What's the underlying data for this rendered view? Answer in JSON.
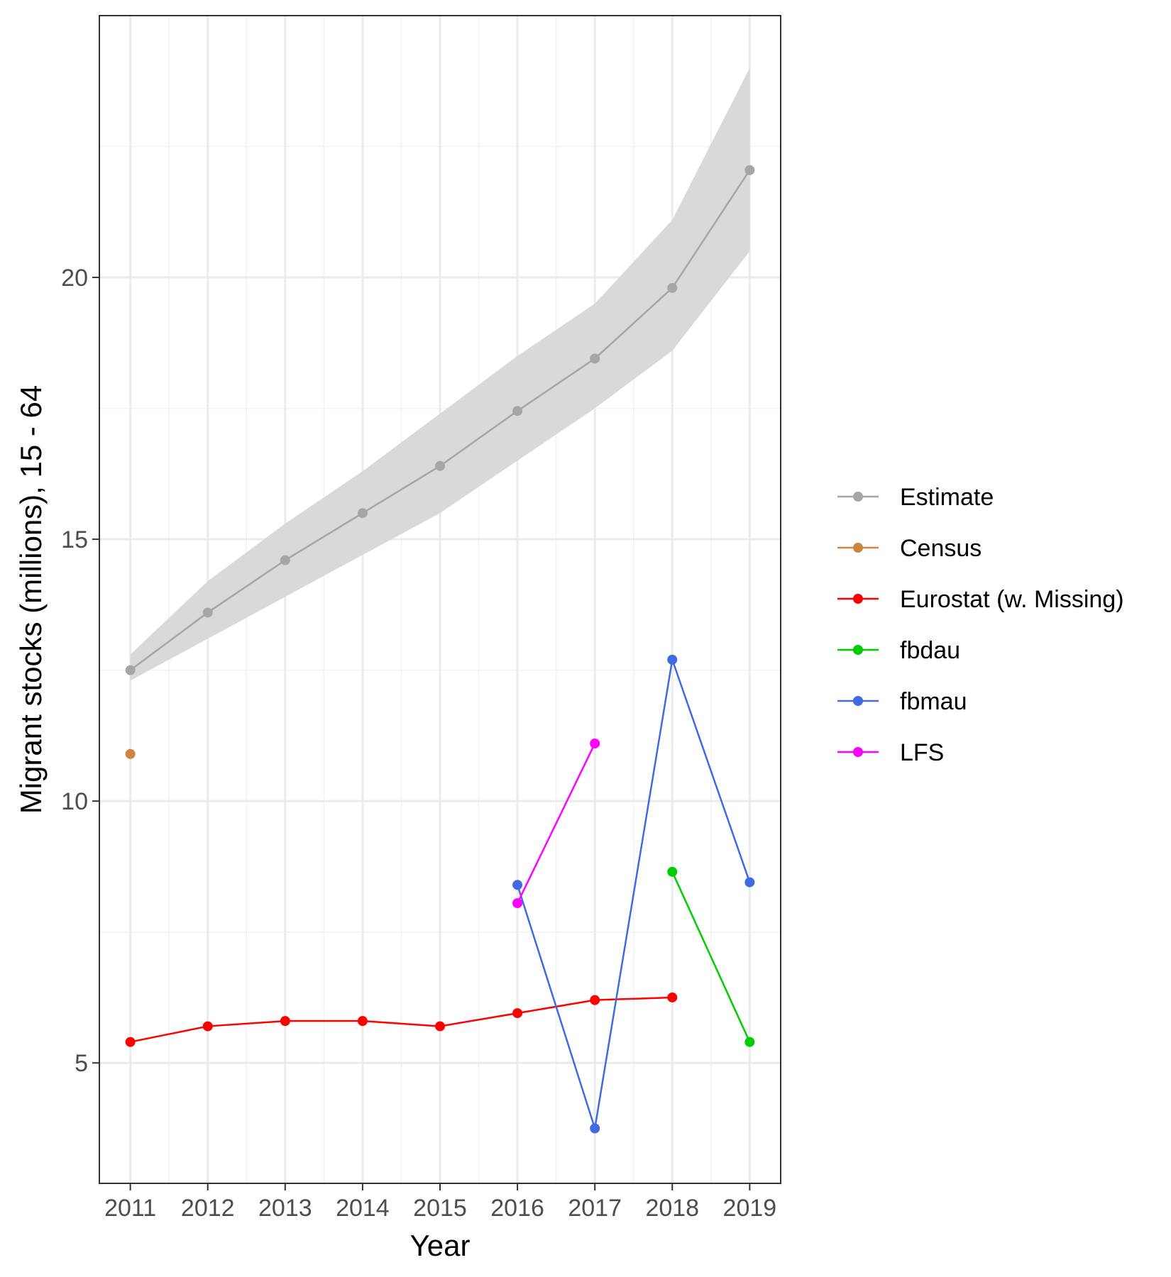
{
  "chart_data": {
    "type": "line",
    "xlabel": "Year",
    "ylabel": "Migrant stocks (millions), 15 - 64",
    "x_ticks": [
      2011,
      2012,
      2013,
      2014,
      2015,
      2016,
      2017,
      2018,
      2019
    ],
    "y_ticks": [
      5,
      10,
      15,
      20
    ],
    "xlim": [
      2010.6,
      2019.4
    ],
    "ylim": [
      2.7,
      25.0
    ],
    "grid": true,
    "legend_position": "right",
    "ribbon": {
      "series": "Estimate",
      "x": [
        2011,
        2012,
        2013,
        2014,
        2015,
        2016,
        2017,
        2018,
        2019
      ],
      "lower": [
        12.3,
        13.1,
        13.9,
        14.7,
        15.5,
        16.5,
        17.5,
        18.6,
        20.5
      ],
      "upper": [
        12.8,
        14.2,
        15.3,
        16.3,
        17.4,
        18.5,
        19.5,
        21.1,
        24.0
      ],
      "color": "#d9d9d9"
    },
    "series": [
      {
        "name": "Estimate",
        "color": "#a6a6a6",
        "x": [
          2011,
          2012,
          2013,
          2014,
          2015,
          2016,
          2017,
          2018,
          2019
        ],
        "values": [
          12.5,
          13.6,
          14.6,
          15.5,
          16.4,
          17.45,
          18.45,
          19.8,
          22.05
        ]
      },
      {
        "name": "Census",
        "color": "#cd853f",
        "x": [
          2011
        ],
        "values": [
          10.9
        ]
      },
      {
        "name": "Eurostat (w. Missing)",
        "color": "#ff0000",
        "x": [
          2011,
          2012,
          2013,
          2014,
          2015,
          2016,
          2017,
          2018
        ],
        "values": [
          5.4,
          5.7,
          5.8,
          5.8,
          5.7,
          5.95,
          6.2,
          6.25
        ]
      },
      {
        "name": "fbdau",
        "color": "#00cd00",
        "x": [
          2018,
          2019
        ],
        "values": [
          8.65,
          5.4
        ]
      },
      {
        "name": "fbmau",
        "color": "#4169e1",
        "x": [
          2016,
          2017,
          2018,
          2019
        ],
        "values": [
          8.4,
          3.75,
          12.7,
          8.45
        ]
      },
      {
        "name": "LFS",
        "color": "#ff00ff",
        "x": [
          2016,
          2017
        ],
        "values": [
          8.05,
          11.1
        ]
      }
    ]
  }
}
